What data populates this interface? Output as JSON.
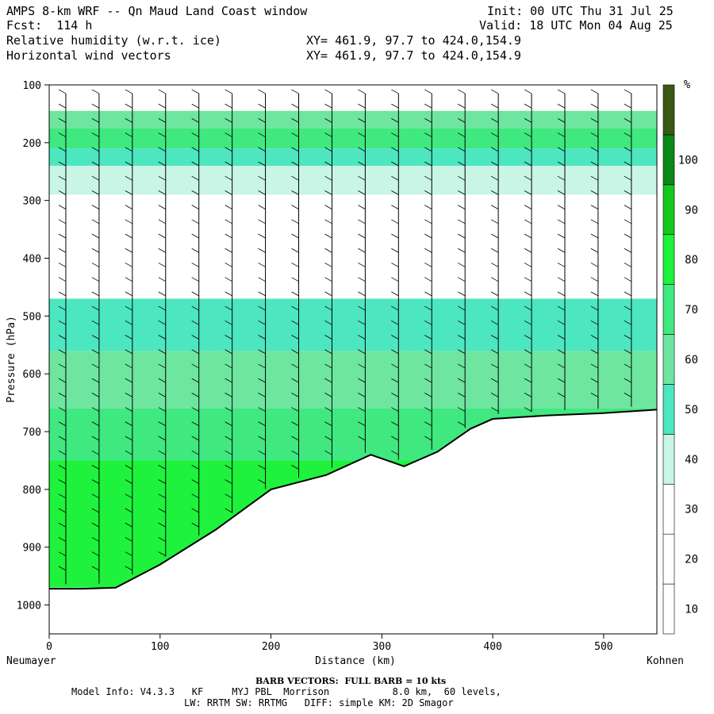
{
  "header": {
    "title": "AMPS 8-km WRF -- Qn Maud Land Coast window",
    "fcst": "Fcst:  114 h",
    "init": "Init: 00 UTC Thu 31 Jul 25",
    "valid": "Valid: 18 UTC Mon 04 Aug 25",
    "field1": "Relative humidity (w.r.t. ice)",
    "field2": "Horizontal wind vectors",
    "xy1": "XY= 461.9, 97.7 to 424.0,154.9",
    "xy2": "XY= 461.9, 97.7 to 424.0,154.9"
  },
  "axes": {
    "ylabel": "Pressure (hPa)",
    "xlabel": "Distance (km)",
    "left_end": "Neumayer",
    "right_end": "Kohnen",
    "y_ticks": [
      "100",
      "200",
      "300",
      "400",
      "500",
      "600",
      "700",
      "800",
      "900",
      "1000"
    ],
    "x_ticks": [
      "0",
      "100",
      "200",
      "300",
      "400",
      "500"
    ]
  },
  "colorbar": {
    "unit": "%",
    "labels": [
      "10",
      "20",
      "30",
      "40",
      "50",
      "60",
      "70",
      "80",
      "90",
      "100"
    ],
    "colors": [
      "#ffffff",
      "#ffffff",
      "#ffffff",
      "#c8f5e6",
      "#4ce6c0",
      "#6ee6a0",
      "#40e880",
      "#1ef23c",
      "#14c81e",
      "#0a8a14",
      "#3a5a14"
    ]
  },
  "footer": {
    "barb": "BARB VECTORS:  FULL BARB = 10 kts",
    "model_info": "Model Info: V4.3.3   KF     MYJ PBL  Morrison           8.0 km,  60 levels,",
    "physics": "LW: RRTM SW: RRTMG   DIFF: simple KM: 2D Smagor"
  },
  "chart_data": {
    "type": "heatmap",
    "title": "Relative humidity (w.r.t. ice)",
    "xlabel": "Distance (km)",
    "ylabel": "Pressure (hPa)",
    "xlim": [
      0,
      548
    ],
    "ylim": [
      1050,
      100
    ],
    "z_unit": "%",
    "contour_levels": [
      10,
      20,
      30,
      40,
      50,
      60,
      70,
      80,
      90,
      100
    ],
    "terrain_surface_hPa": {
      "x": [
        0,
        30,
        60,
        100,
        150,
        200,
        250,
        290,
        320,
        350,
        380,
        400,
        450,
        500,
        548
      ],
      "p": [
        972,
        972,
        970,
        930,
        870,
        800,
        775,
        740,
        760,
        735,
        695,
        678,
        672,
        668,
        662
      ]
    },
    "rh_bands": [
      {
        "p_top": 145,
        "p_bottom": 175,
        "rh": 50
      },
      {
        "p_top": 175,
        "p_bottom": 210,
        "rh": 60
      },
      {
        "p_top": 210,
        "p_bottom": 240,
        "rh": 40
      },
      {
        "p_top": 240,
        "p_bottom": 290,
        "rh": 35
      },
      {
        "p_top": 290,
        "p_bottom": 470,
        "rh": 15
      },
      {
        "p_top": 470,
        "p_bottom": 560,
        "rh": 45
      },
      {
        "p_top": 560,
        "p_bottom": 660,
        "rh": 55
      },
      {
        "p_top": 660,
        "p_bottom": 750,
        "rh": 60
      },
      {
        "p_top": 750,
        "p_bottom": 970,
        "rh": 70
      }
    ],
    "wind_columns_km": [
      15,
      45,
      75,
      105,
      135,
      165,
      195,
      225,
      255,
      285,
      315,
      345,
      375,
      405,
      435,
      465,
      495,
      525
    ]
  }
}
